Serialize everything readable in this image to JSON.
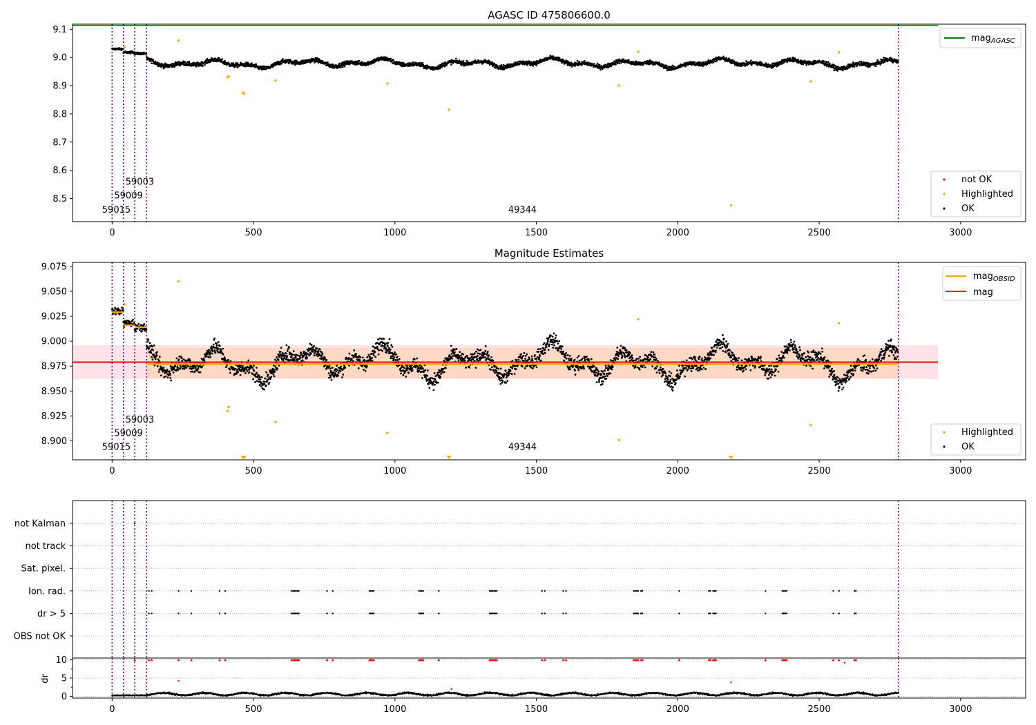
{
  "chart_data": [
    {
      "type": "scatter",
      "title": "AGASC ID 475806600.0",
      "xlabel": "",
      "ylabel": "",
      "xlim": [
        -140,
        3230
      ],
      "ylim": [
        8.418,
        9.118
      ],
      "xticks": [
        0,
        500,
        1000,
        1500,
        2000,
        2500,
        3000
      ],
      "xtick_labels": [
        "0",
        "500",
        "1000",
        "1500",
        "2000",
        "2500",
        "3000"
      ],
      "yticks": [
        8.5,
        8.6,
        8.7,
        8.8,
        8.9,
        9.0,
        9.1
      ],
      "ytick_labels": [
        "8.5",
        "8.6",
        "8.7",
        "8.8",
        "8.9",
        "9.0",
        "9.1"
      ],
      "hline": {
        "label": "mag_AGASC",
        "y": 9.113,
        "x_range": [
          -140,
          2920
        ],
        "color": "#008000"
      },
      "vlines": [
        0,
        40,
        80,
        122,
        2780
      ],
      "vline_color": "#800080",
      "obsid_labels": [
        {
          "text": "59015",
          "x": 15,
          "y": 8.45
        },
        {
          "text": "59009",
          "x": 58,
          "y": 8.5
        },
        {
          "text": "59003",
          "x": 98,
          "y": 8.549
        },
        {
          "text": "49344",
          "x": 1451,
          "y": 8.45
        }
      ],
      "series": [
        {
          "name": "not OK",
          "color": "#ff0000",
          "marker": "dot",
          "points": []
        },
        {
          "name": "Highlighted",
          "color": "#ffa500",
          "marker": "dot",
          "points": [
            [
              235,
              9.06
            ],
            [
              408,
              8.93
            ],
            [
              412,
              8.933
            ],
            [
              463,
              8.875
            ],
            [
              466,
              8.872
            ],
            [
              578,
              8.918
            ],
            [
              973,
              8.908
            ],
            [
              1191,
              8.815
            ],
            [
              1792,
              8.901
            ],
            [
              1860,
              9.02
            ],
            [
              2188,
              8.476
            ],
            [
              2470,
              8.915
            ],
            [
              2570,
              9.018
            ],
            [
              44,
              9.036
            ]
          ]
        },
        {
          "name": "OK",
          "color": "#000000",
          "marker": "dot",
          "segments": [
            {
              "x": [
                0,
                40
              ],
              "mean": 9.03,
              "amp": 0.007
            },
            {
              "x": [
                40,
                80
              ],
              "mean": 9.018,
              "amp": 0.008
            },
            {
              "x": [
                80,
                122
              ],
              "mean": 9.014,
              "amp": 0.008
            },
            {
              "x": [
                122,
                2780
              ],
              "mean": 8.979,
              "amp": 0.016
            }
          ]
        }
      ],
      "legend_position": "top-right",
      "legend2_position": "bottom-right"
    },
    {
      "type": "scatter",
      "title": "Magnitude Estimates",
      "xlabel": "",
      "ylabel": "",
      "xlim": [
        -140,
        3230
      ],
      "ylim": [
        8.881,
        9.079
      ],
      "xticks": [
        0,
        500,
        1000,
        1500,
        2000,
        2500,
        3000
      ],
      "xtick_labels": [
        "0",
        "500",
        "1000",
        "1500",
        "2000",
        "2500",
        "3000"
      ],
      "yticks": [
        8.9,
        8.925,
        8.95,
        8.975,
        9.0,
        9.025,
        9.05,
        9.075
      ],
      "ytick_labels": [
        "8.900",
        "8.925",
        "8.950",
        "8.975",
        "9.000",
        "9.025",
        "9.050",
        "9.075"
      ],
      "lines": [
        {
          "label": "mag_OBSID",
          "color": "#ffa500",
          "segments": [
            {
              "x": [
                0,
                40
              ],
              "y": 9.029
            },
            {
              "x": [
                40,
                80
              ],
              "y": 9.016
            },
            {
              "x": [
                80,
                122
              ],
              "y": 9.014
            },
            {
              "x": [
                122,
                2780
              ],
              "y": 8.977
            }
          ]
        },
        {
          "label": "mag",
          "color": "#ff0000",
          "y": 8.979,
          "x_range": [
            -140,
            2920
          ]
        }
      ],
      "bands": [
        {
          "color": "#ffc0cb",
          "y": [
            8.962,
            8.996
          ],
          "x_range": [
            -140,
            2920
          ]
        },
        {
          "color": "#ffd0a8",
          "y": [
            8.963,
            8.993
          ],
          "x_range": [
            122,
            2780
          ]
        }
      ],
      "vlines": [
        0,
        40,
        80,
        122,
        2780
      ],
      "vline_color": "#800080",
      "obsid_labels": [
        {
          "text": "59015",
          "x": 15,
          "y": 8.891
        },
        {
          "text": "59009",
          "x": 58,
          "y": 8.905
        },
        {
          "text": "59003",
          "x": 98,
          "y": 8.9185
        }
      ],
      "obsid_labels_extra": [
        {
          "text": "49344",
          "x": 1451,
          "y": 8.891
        }
      ],
      "series": [
        {
          "name": "Highlighted",
          "color": "#ffa500",
          "marker": "dot",
          "points": [
            [
              235,
              9.06
            ],
            [
              44,
              9.037
            ],
            [
              408,
              8.93
            ],
            [
              412,
              8.934
            ],
            [
              578,
              8.919
            ],
            [
              973,
              8.908
            ],
            [
              1792,
              8.901
            ],
            [
              1860,
              9.022
            ],
            [
              2470,
              8.916
            ],
            [
              2570,
              9.018
            ]
          ],
          "below_range": [
            463,
            466,
            1191,
            2188
          ]
        },
        {
          "name": "OK",
          "color": "#000000",
          "marker": "dot"
        }
      ],
      "legend_position": "top-right",
      "legend2_position": "bottom-right"
    },
    {
      "type": "scatter",
      "title": "",
      "xlabel": "",
      "ylabel": "",
      "xlim": [
        -140,
        3230
      ],
      "xticks": [
        0,
        500,
        1000,
        1500,
        2000,
        2500,
        3000
      ],
      "xtick_labels": [
        "0",
        "500",
        "1000",
        "1500",
        "2000",
        "2500",
        "3000"
      ],
      "categories": [
        "not Kalman",
        "not track",
        "Sat. pixel.",
        "Ion. rad.",
        "dr > 5",
        "OBS not OK"
      ],
      "flag_x": [
        130,
        140,
        235,
        280,
        380,
        400,
        635,
        640,
        645,
        650,
        655,
        660,
        760,
        780,
        910,
        915,
        920,
        925,
        1085,
        1090,
        1095,
        1100,
        1155,
        1335,
        1340,
        1345,
        1350,
        1355,
        1360,
        1520,
        1530,
        1595,
        1605,
        1845,
        1850,
        1855,
        1860,
        1870,
        1875,
        2005,
        2110,
        2115,
        2125,
        2130,
        2135,
        2310,
        2370,
        2375,
        2380,
        2385,
        2550,
        2570,
        2625,
        2630
      ],
      "not_kalman_x": [
        80
      ],
      "vlines": [
        0,
        40,
        80,
        122,
        2780
      ],
      "vline_color": "#800080"
    },
    {
      "type": "scatter",
      "title": "",
      "xlabel": "",
      "ylabel": "dr",
      "xlim": [
        -140,
        3230
      ],
      "ylim": [
        -0.5,
        10.5
      ],
      "yticks": [
        0,
        5,
        10
      ],
      "ytick_labels": [
        "0",
        "5",
        "10"
      ],
      "xticks": [
        0,
        500,
        1000,
        1500,
        2000,
        2500,
        3000
      ],
      "xtick_labels": [
        "0",
        "500",
        "1000",
        "1500",
        "2000",
        "2500",
        "3000"
      ],
      "clip_value": 10,
      "outliers": [
        [
          235,
          4.2
        ],
        [
          1200,
          2.0
        ],
        [
          2188,
          3.8
        ],
        [
          2590,
          9.2
        ]
      ],
      "series": [
        {
          "name": "dr",
          "color": "#000000",
          "mean": 0.6,
          "amp": 0.6
        },
        {
          "name": "dr > 5",
          "color": "#ff0000",
          "marker": "triangle"
        }
      ],
      "vlines": [
        0,
        40,
        80,
        122,
        2780
      ],
      "vline_color": "#800080"
    }
  ],
  "legend_labels": {
    "mag_agasc": {
      "main": "mag",
      "sub": "AGASC"
    },
    "mag_obsid": {
      "main": "mag",
      "sub": "OBSID"
    },
    "mag": "mag",
    "not_ok": "not OK",
    "highlighted": "Highlighted",
    "ok": "OK"
  }
}
